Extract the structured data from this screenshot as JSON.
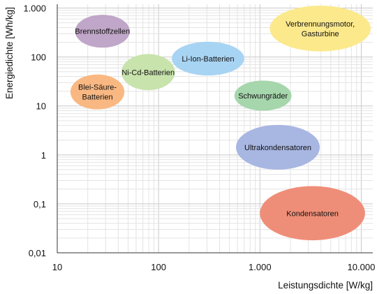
{
  "chart_data": {
    "type": "bubble-regions",
    "xlabel": "Leistungsdichte [W/kg]",
    "ylabel": "Energiedichte [Wh/kg]",
    "x_scale": "log",
    "y_scale": "log",
    "xlim": [
      10,
      13000
    ],
    "ylim": [
      0.01,
      1200
    ],
    "x_ticks": [
      10,
      100,
      1000,
      10000
    ],
    "x_tick_labels": [
      "10",
      "100",
      "1.000",
      "10.000"
    ],
    "y_ticks": [
      0.01,
      0.1,
      1,
      10,
      100,
      1000
    ],
    "y_tick_labels": [
      "0,01",
      "0,1",
      "1",
      "10",
      "100",
      "1.000"
    ],
    "grid": true,
    "regions": [
      {
        "lines": [
          "Brennstoffzellen"
        ],
        "x_range": [
          15,
          52
        ],
        "y_range": [
          155,
          730
        ],
        "color": "#c0a6c8"
      },
      {
        "lines": [
          "Ni-Cd-Batterien"
        ],
        "x_range": [
          43,
          145
        ],
        "y_range": [
          21,
          115
        ],
        "color": "#c8e3ac"
      },
      {
        "lines": [
          "Li-Ion-Batterien"
        ],
        "x_range": [
          135,
          700
        ],
        "y_range": [
          42,
          205
        ],
        "color": "#a8d4f3"
      },
      {
        "lines": [
          "Blei-Säure-",
          "Batterien"
        ],
        "x_range": [
          13.5,
          46
        ],
        "y_range": [
          8.5,
          44
        ],
        "color": "#f9b882"
      },
      {
        "lines": [
          "Verbrennungsmotor,",
          "Gasturbine"
        ],
        "x_range": [
          1250,
          12400
        ],
        "y_range": [
          130,
          1120
        ],
        "color": "#fbe98c"
      },
      {
        "lines": [
          "Schwungräder"
        ],
        "x_range": [
          560,
          2050
        ],
        "y_range": [
          8,
          33
        ],
        "color": "#a6d6ac"
      },
      {
        "lines": [
          "Ultrakondensatoren"
        ],
        "x_range": [
          580,
          3900
        ],
        "y_range": [
          0.5,
          4.1
        ],
        "color": "#a8b6e2"
      },
      {
        "lines": [
          "Kondensatoren"
        ],
        "x_range": [
          1000,
          10900
        ],
        "y_range": [
          0.018,
          0.23
        ],
        "color": "#ef8e78"
      }
    ]
  }
}
